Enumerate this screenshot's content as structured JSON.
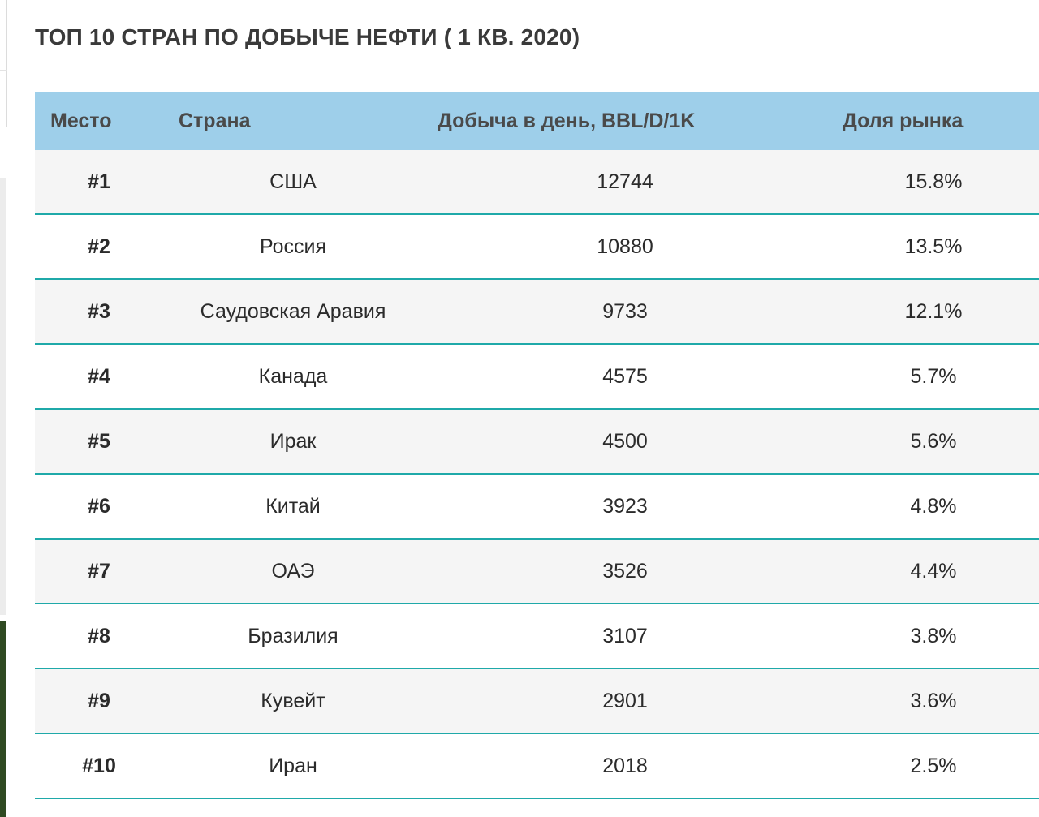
{
  "title": "ТОП 10 СТРАН ПО ДОБЫЧЕ НЕФТИ ( 1 КВ. 2020)",
  "colors": {
    "header_bg": "#9ecfea",
    "row_divider": "#1fa9a9",
    "shaded_row": "#f5f5f5"
  },
  "table": {
    "headers": [
      "Место",
      "Страна",
      "Добыча в день, BBL/D/1K",
      "Доля рынка"
    ],
    "rows": [
      {
        "rank": "#1",
        "country": "США",
        "production": "12744",
        "share": "15.8%"
      },
      {
        "rank": "#2",
        "country": "Россия",
        "production": "10880",
        "share": "13.5%"
      },
      {
        "rank": "#3",
        "country": "Саудовская Аравия",
        "production": "9733",
        "share": "12.1%"
      },
      {
        "rank": "#4",
        "country": "Канада",
        "production": "4575",
        "share": "5.7%"
      },
      {
        "rank": "#5",
        "country": "Ирак",
        "production": "4500",
        "share": "5.6%"
      },
      {
        "rank": "#6",
        "country": "Китай",
        "production": "3923",
        "share": "4.8%"
      },
      {
        "rank": "#7",
        "country": "ОАЭ",
        "production": "3526",
        "share": "4.4%"
      },
      {
        "rank": "#8",
        "country": "Бразилия",
        "production": "3107",
        "share": "3.8%"
      },
      {
        "rank": "#9",
        "country": "Кувейт",
        "production": "2901",
        "share": "3.6%"
      },
      {
        "rank": "#10",
        "country": "Иран",
        "production": "2018",
        "share": "2.5%"
      }
    ]
  }
}
